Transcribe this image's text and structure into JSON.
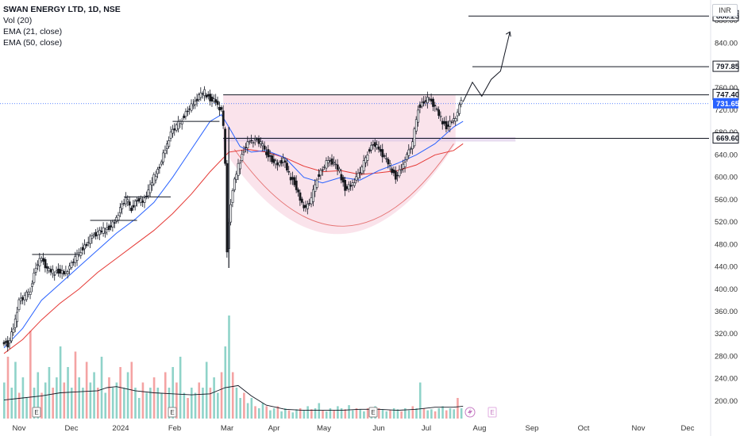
{
  "legend": {
    "title": "SWAN ENERGY LTD, 1D, NSE",
    "vol": "Vol (20)",
    "ema21": "EMA (21, close)",
    "ema50": "EMA (50, close)"
  },
  "currency": "INR",
  "colors": {
    "up": "#1a1a1a",
    "down": "#1a1a1a",
    "vol_up": "#8fd3c9",
    "vol_down": "#f4a3a3",
    "ema21": "#2962ff",
    "ema50": "#e53935",
    "cup_fill": "#f8d7e3",
    "cup_stroke": "#e57373",
    "price_tag": "#2962ff"
  },
  "chart_data": {
    "type": "candlestick",
    "ylim": [
      180,
      900
    ],
    "y_ticks": [
      200,
      240,
      280,
      320,
      360,
      400,
      440,
      480,
      520,
      560,
      600,
      640,
      680,
      720,
      760,
      800,
      840,
      880
    ],
    "x_ticks": [
      "Nov",
      "Dec",
      "2024",
      "Feb",
      "Mar",
      "Apr",
      "May",
      "Jun",
      "Jul",
      "Aug",
      "Sep",
      "Oct",
      "Nov",
      "Dec"
    ],
    "price_path": [
      [
        0,
        310
      ],
      [
        3,
        300
      ],
      [
        6,
        330
      ],
      [
        9,
        380
      ],
      [
        12,
        385
      ],
      [
        15,
        400
      ],
      [
        18,
        440
      ],
      [
        21,
        455
      ],
      [
        24,
        435
      ],
      [
        27,
        430
      ],
      [
        30,
        432
      ],
      [
        33,
        428
      ],
      [
        36,
        440
      ],
      [
        39,
        455
      ],
      [
        42,
        470
      ],
      [
        45,
        480
      ],
      [
        48,
        495
      ],
      [
        51,
        500
      ],
      [
        54,
        505
      ],
      [
        57,
        510
      ],
      [
        60,
        520
      ],
      [
        63,
        545
      ],
      [
        66,
        560
      ],
      [
        69,
        545
      ],
      [
        72,
        560
      ],
      [
        75,
        555
      ],
      [
        78,
        575
      ],
      [
        81,
        600
      ],
      [
        84,
        620
      ],
      [
        87,
        650
      ],
      [
        90,
        680
      ],
      [
        93,
        690
      ],
      [
        96,
        705
      ],
      [
        99,
        720
      ],
      [
        102,
        730
      ],
      [
        105,
        745
      ],
      [
        108,
        752
      ],
      [
        111,
        740
      ],
      [
        114,
        735
      ],
      [
        117,
        720
      ],
      [
        118,
        690
      ],
      [
        119,
        620
      ],
      [
        120,
        470
      ],
      [
        121,
        520
      ],
      [
        123,
        580
      ],
      [
        126,
        620
      ],
      [
        129,
        650
      ],
      [
        132,
        665
      ],
      [
        135,
        668
      ],
      [
        138,
        660
      ],
      [
        141,
        645
      ],
      [
        144,
        630
      ],
      [
        147,
        622
      ],
      [
        150,
        632
      ],
      [
        153,
        605
      ],
      [
        156,
        590
      ],
      [
        159,
        560
      ],
      [
        162,
        545
      ],
      [
        165,
        560
      ],
      [
        168,
        600
      ],
      [
        171,
        615
      ],
      [
        174,
        630
      ],
      [
        177,
        625
      ],
      [
        180,
        610
      ],
      [
        183,
        580
      ],
      [
        186,
        585
      ],
      [
        189,
        600
      ],
      [
        192,
        615
      ],
      [
        195,
        645
      ],
      [
        198,
        660
      ],
      [
        201,
        650
      ],
      [
        204,
        635
      ],
      [
        207,
        620
      ],
      [
        210,
        600
      ],
      [
        213,
        615
      ],
      [
        216,
        640
      ],
      [
        219,
        660
      ],
      [
        222,
        725
      ],
      [
        225,
        735
      ],
      [
        228,
        740
      ],
      [
        231,
        725
      ],
      [
        234,
        705
      ],
      [
        237,
        690
      ],
      [
        240,
        700
      ],
      [
        243,
        715
      ],
      [
        245,
        740
      ]
    ],
    "ema21_path": [
      [
        0,
        295
      ],
      [
        10,
        330
      ],
      [
        20,
        380
      ],
      [
        30,
        410
      ],
      [
        40,
        440
      ],
      [
        50,
        470
      ],
      [
        60,
        500
      ],
      [
        70,
        525
      ],
      [
        80,
        555
      ],
      [
        90,
        600
      ],
      [
        100,
        650
      ],
      [
        110,
        700
      ],
      [
        116,
        712
      ],
      [
        120,
        690
      ],
      [
        126,
        655
      ],
      [
        132,
        645
      ],
      [
        140,
        648
      ],
      [
        150,
        635
      ],
      [
        160,
        600
      ],
      [
        170,
        590
      ],
      [
        180,
        600
      ],
      [
        190,
        595
      ],
      [
        200,
        612
      ],
      [
        210,
        625
      ],
      [
        220,
        640
      ],
      [
        230,
        660
      ],
      [
        240,
        690
      ],
      [
        245,
        700
      ]
    ],
    "ema50_path": [
      [
        0,
        285
      ],
      [
        10,
        310
      ],
      [
        20,
        345
      ],
      [
        30,
        375
      ],
      [
        40,
        400
      ],
      [
        50,
        430
      ],
      [
        60,
        455
      ],
      [
        70,
        480
      ],
      [
        80,
        505
      ],
      [
        90,
        535
      ],
      [
        100,
        570
      ],
      [
        110,
        610
      ],
      [
        120,
        645
      ],
      [
        130,
        650
      ],
      [
        140,
        645
      ],
      [
        150,
        635
      ],
      [
        160,
        620
      ],
      [
        170,
        610
      ],
      [
        180,
        612
      ],
      [
        190,
        605
      ],
      [
        200,
        608
      ],
      [
        210,
        612
      ],
      [
        220,
        622
      ],
      [
        230,
        640
      ],
      [
        240,
        648
      ],
      [
        245,
        660
      ]
    ],
    "volume": [
      [
        0,
        0.35
      ],
      [
        2,
        0.6
      ],
      [
        4,
        0.3
      ],
      [
        6,
        0.55
      ],
      [
        8,
        0.25
      ],
      [
        10,
        0.4
      ],
      [
        12,
        0.2
      ],
      [
        14,
        0.85
      ],
      [
        16,
        0.3
      ],
      [
        18,
        0.45
      ],
      [
        20,
        0.25
      ],
      [
        22,
        0.35
      ],
      [
        24,
        0.5
      ],
      [
        26,
        0.3
      ],
      [
        28,
        0.4
      ],
      [
        30,
        0.7
      ],
      [
        32,
        0.35
      ],
      [
        34,
        0.5
      ],
      [
        36,
        0.3
      ],
      [
        38,
        0.65
      ],
      [
        40,
        0.4
      ],
      [
        42,
        0.3
      ],
      [
        44,
        0.55
      ],
      [
        46,
        0.35
      ],
      [
        48,
        0.45
      ],
      [
        50,
        0.3
      ],
      [
        52,
        0.6
      ],
      [
        54,
        0.25
      ],
      [
        56,
        0.4
      ],
      [
        58,
        0.3
      ],
      [
        60,
        0.35
      ],
      [
        62,
        0.5
      ],
      [
        64,
        0.3
      ],
      [
        66,
        0.45
      ],
      [
        68,
        0.55
      ],
      [
        70,
        0.3
      ],
      [
        72,
        0.2
      ],
      [
        74,
        0.35
      ],
      [
        76,
        0.25
      ],
      [
        78,
        0.3
      ],
      [
        80,
        0.4
      ],
      [
        82,
        0.3
      ],
      [
        84,
        0.25
      ],
      [
        86,
        0.45
      ],
      [
        88,
        0.3
      ],
      [
        90,
        0.5
      ],
      [
        92,
        0.35
      ],
      [
        94,
        0.6
      ],
      [
        96,
        0.25
      ],
      [
        98,
        0.2
      ],
      [
        100,
        0.3
      ],
      [
        102,
        0.25
      ],
      [
        104,
        0.35
      ],
      [
        106,
        0.3
      ],
      [
        108,
        0.55
      ],
      [
        110,
        0.3
      ],
      [
        112,
        0.4
      ],
      [
        114,
        0.25
      ],
      [
        116,
        0.45
      ],
      [
        118,
        0.7
      ],
      [
        120,
        1.0
      ],
      [
        122,
        0.45
      ],
      [
        124,
        0.3
      ],
      [
        126,
        0.2
      ],
      [
        128,
        0.25
      ],
      [
        130,
        0.15
      ],
      [
        132,
        0.2
      ],
      [
        134,
        0.12
      ],
      [
        136,
        0.1
      ],
      [
        138,
        0.15
      ],
      [
        140,
        0.12
      ],
      [
        142,
        0.08
      ],
      [
        144,
        0.1
      ],
      [
        146,
        0.12
      ],
      [
        148,
        0.07
      ],
      [
        150,
        0.1
      ],
      [
        152,
        0.08
      ],
      [
        154,
        0.06
      ],
      [
        156,
        0.09
      ],
      [
        158,
        0.1
      ],
      [
        160,
        0.08
      ],
      [
        162,
        0.12
      ],
      [
        164,
        0.09
      ],
      [
        166,
        0.1
      ],
      [
        168,
        0.15
      ],
      [
        170,
        0.08
      ],
      [
        172,
        0.07
      ],
      [
        174,
        0.1
      ],
      [
        176,
        0.08
      ],
      [
        178,
        0.12
      ],
      [
        180,
        0.1
      ],
      [
        182,
        0.09
      ],
      [
        184,
        0.13
      ],
      [
        186,
        0.08
      ],
      [
        188,
        0.1
      ],
      [
        190,
        0.09
      ],
      [
        192,
        0.07
      ],
      [
        194,
        0.1
      ],
      [
        196,
        0.08
      ],
      [
        198,
        0.12
      ],
      [
        200,
        0.1
      ],
      [
        202,
        0.09
      ],
      [
        204,
        0.07
      ],
      [
        206,
        0.08
      ],
      [
        208,
        0.1
      ],
      [
        210,
        0.09
      ],
      [
        212,
        0.07
      ],
      [
        214,
        0.1
      ],
      [
        216,
        0.08
      ],
      [
        218,
        0.12
      ],
      [
        220,
        0.1
      ],
      [
        222,
        0.35
      ],
      [
        224,
        0.1
      ],
      [
        226,
        0.08
      ],
      [
        228,
        0.09
      ],
      [
        230,
        0.07
      ],
      [
        232,
        0.1
      ],
      [
        234,
        0.12
      ],
      [
        236,
        0.08
      ],
      [
        238,
        0.1
      ],
      [
        240,
        0.09
      ],
      [
        242,
        0.2
      ],
      [
        244,
        0.1
      ]
    ],
    "vol_ma": [
      [
        0,
        0.18
      ],
      [
        10,
        0.2
      ],
      [
        20,
        0.22
      ],
      [
        30,
        0.25
      ],
      [
        40,
        0.26
      ],
      [
        50,
        0.27
      ],
      [
        55,
        0.3
      ],
      [
        60,
        0.31
      ],
      [
        70,
        0.27
      ],
      [
        80,
        0.25
      ],
      [
        90,
        0.24
      ],
      [
        100,
        0.23
      ],
      [
        110,
        0.24
      ],
      [
        118,
        0.3
      ],
      [
        125,
        0.32
      ],
      [
        132,
        0.22
      ],
      [
        140,
        0.13
      ],
      [
        150,
        0.09
      ],
      [
        160,
        0.08
      ],
      [
        170,
        0.08
      ],
      [
        180,
        0.08
      ],
      [
        190,
        0.09
      ],
      [
        200,
        0.09
      ],
      [
        210,
        0.08
      ],
      [
        220,
        0.09
      ],
      [
        230,
        0.11
      ],
      [
        240,
        0.11
      ],
      [
        245,
        0.12
      ]
    ],
    "levels": [
      {
        "label": "888.25",
        "value": 888.25
      },
      {
        "label": "797.85",
        "value": 797.85
      },
      {
        "label": "747.40",
        "value": 747.4
      },
      {
        "label": "669.60",
        "value": 669.6
      }
    ],
    "last_price": "731.65",
    "projection_path": [
      [
        245,
        735
      ],
      [
        250,
        770
      ],
      [
        255,
        745
      ],
      [
        260,
        775
      ],
      [
        265,
        790
      ],
      [
        270,
        860
      ]
    ]
  }
}
